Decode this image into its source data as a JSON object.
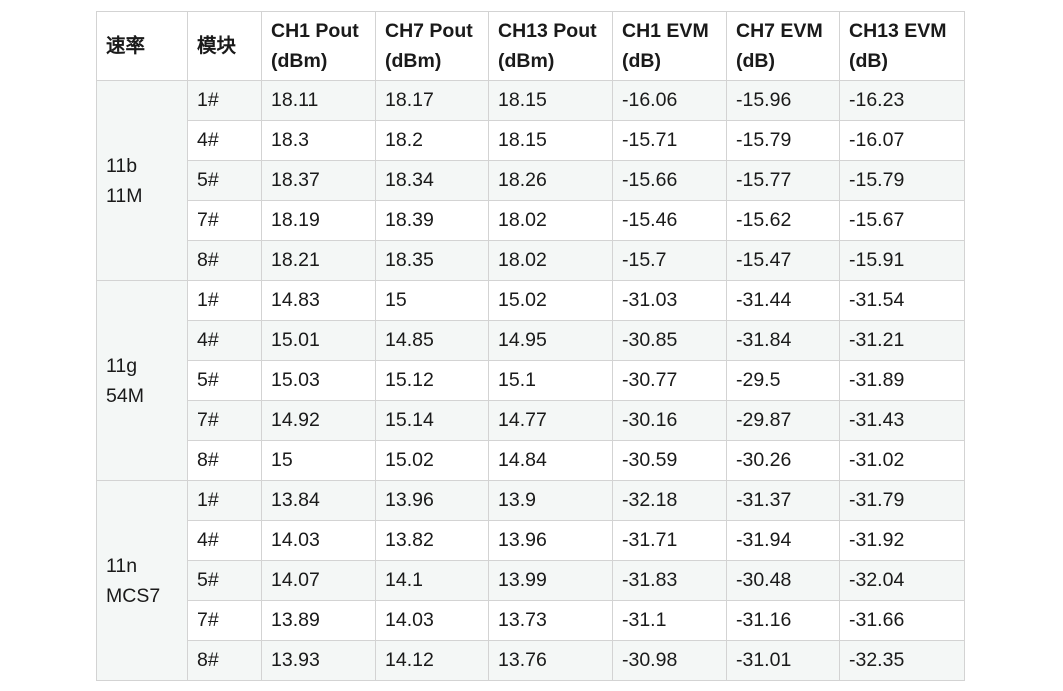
{
  "table": {
    "headers": [
      [
        "速率"
      ],
      [
        "模块"
      ],
      [
        "CH1 Pout",
        "(dBm)"
      ],
      [
        "CH7 Pout",
        "(dBm)"
      ],
      [
        "CH13 Pout",
        "(dBm)"
      ],
      [
        "CH1 EVM",
        "(dB)"
      ],
      [
        "CH7 EVM",
        "(dB)"
      ],
      [
        "CH13 EVM",
        "(dB)"
      ]
    ],
    "groups": [
      {
        "rate": [
          "11b",
          "11M"
        ],
        "rows": [
          [
            "1#",
            "18.11",
            "18.17",
            "18.15",
            "-16.06",
            "-15.96",
            "-16.23"
          ],
          [
            "4#",
            "18.3",
            "18.2",
            "18.15",
            "-15.71",
            "-15.79",
            "-16.07"
          ],
          [
            "5#",
            "18.37",
            "18.34",
            "18.26",
            "-15.66",
            "-15.77",
            "-15.79"
          ],
          [
            "7#",
            "18.19",
            "18.39",
            "18.02",
            "-15.46",
            "-15.62",
            "-15.67"
          ],
          [
            "8#",
            "18.21",
            "18.35",
            "18.02",
            "-15.7",
            "-15.47",
            "-15.91"
          ]
        ]
      },
      {
        "rate": [
          "11g",
          "54M"
        ],
        "rows": [
          [
            "1#",
            "14.83",
            "15",
            "15.02",
            "-31.03",
            "-31.44",
            "-31.54"
          ],
          [
            "4#",
            "15.01",
            "14.85",
            "14.95",
            "-30.85",
            "-31.84",
            "-31.21"
          ],
          [
            "5#",
            "15.03",
            "15.12",
            "15.1",
            "-30.77",
            "-29.5",
            "-31.89"
          ],
          [
            "7#",
            "14.92",
            "15.14",
            "14.77",
            "-30.16",
            "-29.87",
            "-31.43"
          ],
          [
            "8#",
            "15",
            "15.02",
            "14.84",
            "-30.59",
            "-30.26",
            "-31.02"
          ]
        ]
      },
      {
        "rate": [
          "11n",
          "MCS7"
        ],
        "rows": [
          [
            "1#",
            "13.84",
            "13.96",
            "13.9",
            "-32.18",
            "-31.37",
            "-31.79"
          ],
          [
            "4#",
            "14.03",
            "13.82",
            "13.96",
            "-31.71",
            "-31.94",
            "-31.92"
          ],
          [
            "5#",
            "14.07",
            "14.1",
            "13.99",
            "-31.83",
            "-30.48",
            "-32.04"
          ],
          [
            "7#",
            "13.89",
            "14.03",
            "13.73",
            "-31.1",
            "-31.16",
            "-31.66"
          ],
          [
            "8#",
            "13.93",
            "14.12",
            "13.76",
            "-30.98",
            "-31.01",
            "-32.35"
          ]
        ]
      }
    ]
  }
}
